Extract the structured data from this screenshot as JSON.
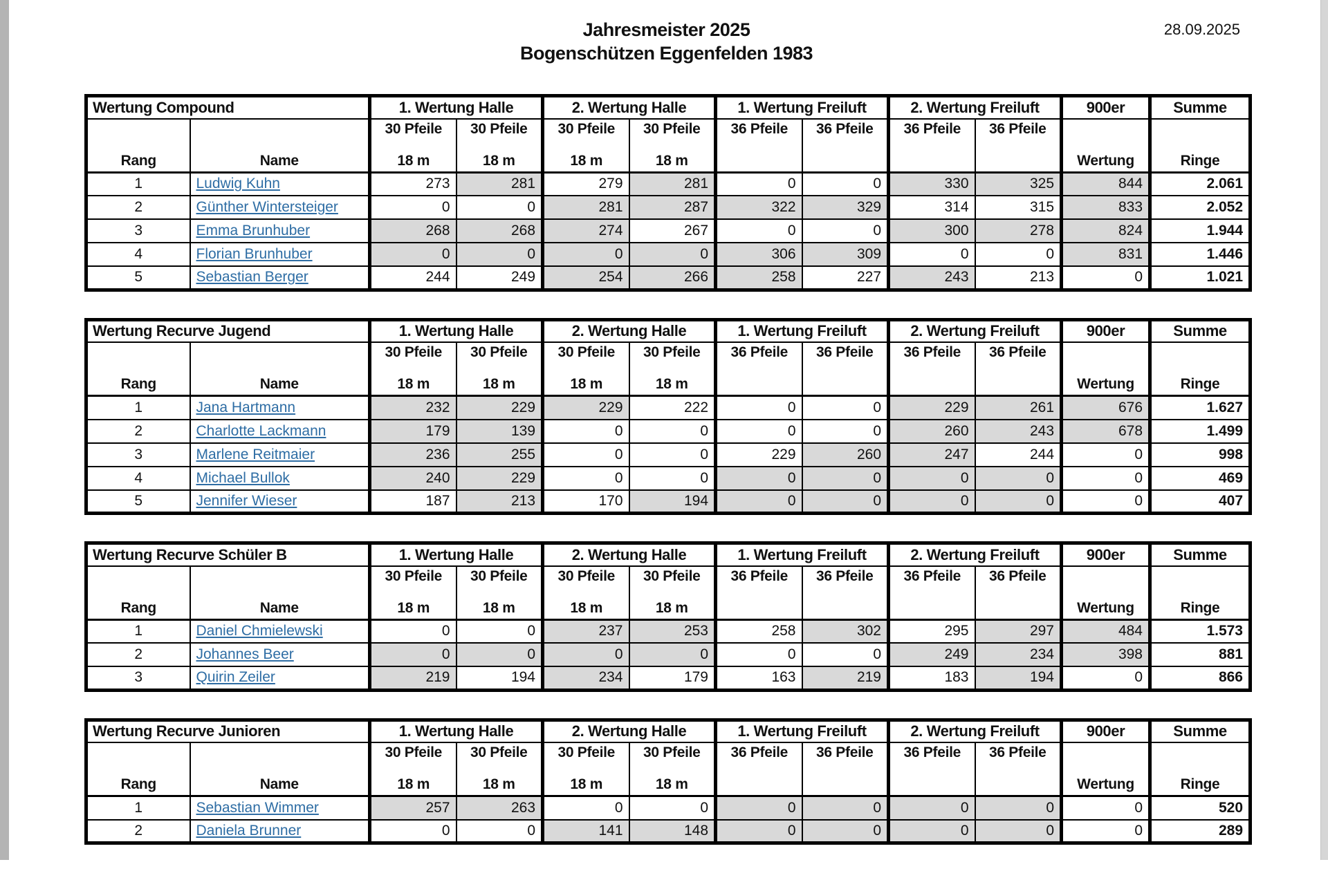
{
  "page": {
    "title_line1": "Jahresmeister 2025",
    "title_line2": "Bogenschützen Eggenfelden 1983",
    "date": "28.09.2025"
  },
  "colors": {
    "shaded_cell": "#d9d9d9",
    "link_text": "#2e6da4"
  },
  "header": {
    "rang": "Rang",
    "name": "Name",
    "groups": [
      "1. Wertung Halle",
      "2. Wertung Halle",
      "1. Wertung Freiluft",
      "2. Wertung Freiluft"
    ],
    "halle_sub_top": "30 Pfeile",
    "halle_sub_bottom": "18 m",
    "freiluft_sub_top": "36 Pfeile",
    "freiluft_sub_bottom": "",
    "col900_top": "900er",
    "col900_bottom": "Wertung",
    "summe_top": "Summe",
    "summe_bottom": "Ringe"
  },
  "tables": [
    {
      "title": "Wertung Compound",
      "rows": [
        {
          "rang": "1",
          "name": "Ludwig Kuhn",
          "scores": [
            {
              "v": "273",
              "g": false
            },
            {
              "v": "281",
              "g": true
            },
            {
              "v": "279",
              "g": false
            },
            {
              "v": "281",
              "g": true
            },
            {
              "v": "0",
              "g": false
            },
            {
              "v": "0",
              "g": false
            },
            {
              "v": "330",
              "g": true
            },
            {
              "v": "325",
              "g": true
            }
          ],
          "wertung900": {
            "v": "844",
            "g": true
          },
          "summe": "2.061"
        },
        {
          "rang": "2",
          "name": "Günther Wintersteiger",
          "scores": [
            {
              "v": "0",
              "g": false
            },
            {
              "v": "0",
              "g": false
            },
            {
              "v": "281",
              "g": true
            },
            {
              "v": "287",
              "g": true
            },
            {
              "v": "322",
              "g": true
            },
            {
              "v": "329",
              "g": true
            },
            {
              "v": "314",
              "g": false
            },
            {
              "v": "315",
              "g": false
            }
          ],
          "wertung900": {
            "v": "833",
            "g": true
          },
          "summe": "2.052"
        },
        {
          "rang": "3",
          "name": "Emma Brunhuber",
          "scores": [
            {
              "v": "268",
              "g": true
            },
            {
              "v": "268",
              "g": true
            },
            {
              "v": "274",
              "g": true
            },
            {
              "v": "267",
              "g": false
            },
            {
              "v": "0",
              "g": false
            },
            {
              "v": "0",
              "g": false
            },
            {
              "v": "300",
              "g": true
            },
            {
              "v": "278",
              "g": true
            }
          ],
          "wertung900": {
            "v": "824",
            "g": true
          },
          "summe": "1.944"
        },
        {
          "rang": "4",
          "name": "Florian Brunhuber",
          "scores": [
            {
              "v": "0",
              "g": true
            },
            {
              "v": "0",
              "g": true
            },
            {
              "v": "0",
              "g": true
            },
            {
              "v": "0",
              "g": true
            },
            {
              "v": "306",
              "g": true
            },
            {
              "v": "309",
              "g": true
            },
            {
              "v": "0",
              "g": false
            },
            {
              "v": "0",
              "g": false
            }
          ],
          "wertung900": {
            "v": "831",
            "g": true
          },
          "summe": "1.446"
        },
        {
          "rang": "5",
          "name": "Sebastian Berger",
          "scores": [
            {
              "v": "244",
              "g": false
            },
            {
              "v": "249",
              "g": false
            },
            {
              "v": "254",
              "g": true
            },
            {
              "v": "266",
              "g": true
            },
            {
              "v": "258",
              "g": true
            },
            {
              "v": "227",
              "g": false
            },
            {
              "v": "243",
              "g": true
            },
            {
              "v": "213",
              "g": false
            }
          ],
          "wertung900": {
            "v": "0",
            "g": false
          },
          "summe": "1.021"
        }
      ]
    },
    {
      "title": "Wertung Recurve Jugend",
      "rows": [
        {
          "rang": "1",
          "name": "Jana Hartmann",
          "scores": [
            {
              "v": "232",
              "g": true
            },
            {
              "v": "229",
              "g": true
            },
            {
              "v": "229",
              "g": true
            },
            {
              "v": "222",
              "g": false
            },
            {
              "v": "0",
              "g": false
            },
            {
              "v": "0",
              "g": false
            },
            {
              "v": "229",
              "g": true
            },
            {
              "v": "261",
              "g": true
            }
          ],
          "wertung900": {
            "v": "676",
            "g": true
          },
          "summe": "1.627"
        },
        {
          "rang": "2",
          "name": "Charlotte Lackmann",
          "scores": [
            {
              "v": "179",
              "g": true
            },
            {
              "v": "139",
              "g": true
            },
            {
              "v": "0",
              "g": false
            },
            {
              "v": "0",
              "g": false
            },
            {
              "v": "0",
              "g": false
            },
            {
              "v": "0",
              "g": false
            },
            {
              "v": "260",
              "g": true
            },
            {
              "v": "243",
              "g": true
            }
          ],
          "wertung900": {
            "v": "678",
            "g": true
          },
          "summe": "1.499"
        },
        {
          "rang": "3",
          "name": "Marlene Reitmaier",
          "scores": [
            {
              "v": "236",
              "g": true
            },
            {
              "v": "255",
              "g": true
            },
            {
              "v": "0",
              "g": false
            },
            {
              "v": "0",
              "g": false
            },
            {
              "v": "229",
              "g": false
            },
            {
              "v": "260",
              "g": true
            },
            {
              "v": "247",
              "g": true
            },
            {
              "v": "244",
              "g": false
            }
          ],
          "wertung900": {
            "v": "0",
            "g": false
          },
          "summe": "998"
        },
        {
          "rang": "4",
          "name": "Michael Bullok",
          "scores": [
            {
              "v": "240",
              "g": true
            },
            {
              "v": "229",
              "g": true
            },
            {
              "v": "0",
              "g": false
            },
            {
              "v": "0",
              "g": false
            },
            {
              "v": "0",
              "g": true
            },
            {
              "v": "0",
              "g": true
            },
            {
              "v": "0",
              "g": true
            },
            {
              "v": "0",
              "g": true
            }
          ],
          "wertung900": {
            "v": "0",
            "g": false
          },
          "summe": "469"
        },
        {
          "rang": "5",
          "name": "Jennifer Wieser",
          "scores": [
            {
              "v": "187",
              "g": false
            },
            {
              "v": "213",
              "g": true
            },
            {
              "v": "170",
              "g": false
            },
            {
              "v": "194",
              "g": true
            },
            {
              "v": "0",
              "g": true
            },
            {
              "v": "0",
              "g": true
            },
            {
              "v": "0",
              "g": true
            },
            {
              "v": "0",
              "g": true
            }
          ],
          "wertung900": {
            "v": "0",
            "g": false
          },
          "summe": "407"
        }
      ]
    },
    {
      "title": "Wertung Recurve Schüler B",
      "rows": [
        {
          "rang": "1",
          "name": "Daniel Chmielewski",
          "scores": [
            {
              "v": "0",
              "g": false
            },
            {
              "v": "0",
              "g": false
            },
            {
              "v": "237",
              "g": true
            },
            {
              "v": "253",
              "g": true
            },
            {
              "v": "258",
              "g": false
            },
            {
              "v": "302",
              "g": true
            },
            {
              "v": "295",
              "g": false
            },
            {
              "v": "297",
              "g": true
            }
          ],
          "wertung900": {
            "v": "484",
            "g": true
          },
          "summe": "1.573"
        },
        {
          "rang": "2",
          "name": "Johannes Beer",
          "scores": [
            {
              "v": "0",
              "g": true
            },
            {
              "v": "0",
              "g": true
            },
            {
              "v": "0",
              "g": true
            },
            {
              "v": "0",
              "g": true
            },
            {
              "v": "0",
              "g": false
            },
            {
              "v": "0",
              "g": false
            },
            {
              "v": "249",
              "g": true
            },
            {
              "v": "234",
              "g": true
            }
          ],
          "wertung900": {
            "v": "398",
            "g": true
          },
          "summe": "881"
        },
        {
          "rang": "3",
          "name": "Quirin Zeiler",
          "scores": [
            {
              "v": "219",
              "g": true
            },
            {
              "v": "194",
              "g": false
            },
            {
              "v": "234",
              "g": true
            },
            {
              "v": "179",
              "g": false
            },
            {
              "v": "163",
              "g": false
            },
            {
              "v": "219",
              "g": true
            },
            {
              "v": "183",
              "g": false
            },
            {
              "v": "194",
              "g": true
            }
          ],
          "wertung900": {
            "v": "0",
            "g": false
          },
          "summe": "866"
        }
      ]
    },
    {
      "title": "Wertung Recurve Junioren",
      "rows": [
        {
          "rang": "1",
          "name": "Sebastian Wimmer",
          "scores": [
            {
              "v": "257",
              "g": true
            },
            {
              "v": "263",
              "g": true
            },
            {
              "v": "0",
              "g": false
            },
            {
              "v": "0",
              "g": false
            },
            {
              "v": "0",
              "g": true
            },
            {
              "v": "0",
              "g": true
            },
            {
              "v": "0",
              "g": true
            },
            {
              "v": "0",
              "g": true
            }
          ],
          "wertung900": {
            "v": "0",
            "g": false
          },
          "summe": "520"
        },
        {
          "rang": "2",
          "name": "Daniela Brunner",
          "scores": [
            {
              "v": "0",
              "g": false
            },
            {
              "v": "0",
              "g": false
            },
            {
              "v": "141",
              "g": true
            },
            {
              "v": "148",
              "g": true
            },
            {
              "v": "0",
              "g": true
            },
            {
              "v": "0",
              "g": true
            },
            {
              "v": "0",
              "g": true
            },
            {
              "v": "0",
              "g": true
            }
          ],
          "wertung900": {
            "v": "0",
            "g": false
          },
          "summe": "289"
        }
      ]
    }
  ]
}
